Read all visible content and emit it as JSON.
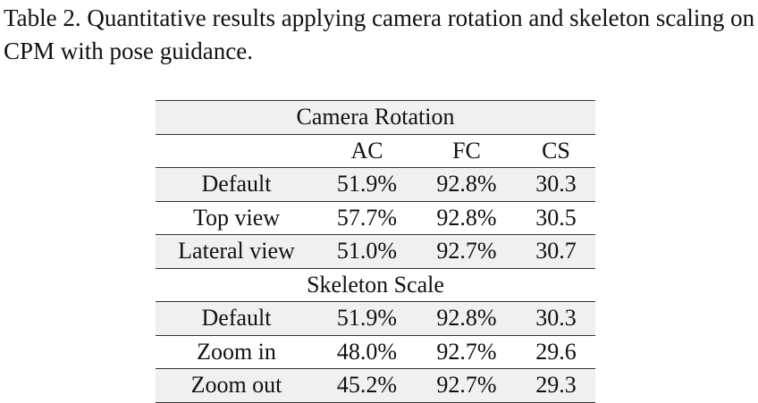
{
  "caption": "Table 2. Quantitative results applying camera rotation and skeleton scaling on CPM with pose guidance.",
  "columns": [
    "",
    "AC",
    "FC",
    "CS"
  ],
  "sections": [
    {
      "title": "Camera Rotation",
      "rows": [
        {
          "label": "Default",
          "ac": "51.9%",
          "fc": "92.8%",
          "cs": "30.3"
        },
        {
          "label": "Top view",
          "ac": "57.7%",
          "fc": "92.8%",
          "cs": "30.5"
        },
        {
          "label": "Lateral view",
          "ac": "51.0%",
          "fc": "92.7%",
          "cs": "30.7"
        }
      ]
    },
    {
      "title": "Skeleton Scale",
      "rows": [
        {
          "label": "Default",
          "ac": "51.9%",
          "fc": "92.8%",
          "cs": "30.3"
        },
        {
          "label": "Zoom in",
          "ac": "48.0%",
          "fc": "92.7%",
          "cs": "29.6"
        },
        {
          "label": "Zoom out",
          "ac": "45.2%",
          "fc": "92.7%",
          "cs": "29.3"
        }
      ]
    }
  ]
}
